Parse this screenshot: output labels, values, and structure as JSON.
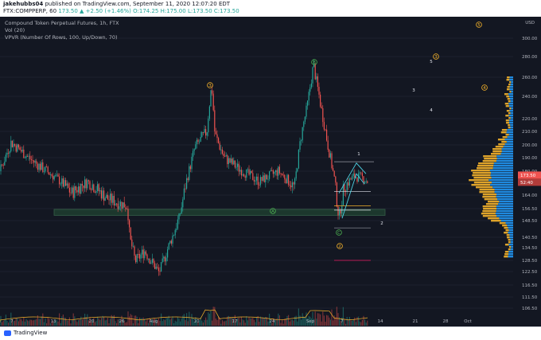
{
  "header": {
    "user": "jakehubbs04",
    "published": "published on TradingView.com, September 11, 2020 12:07:20 EDT",
    "symbol": "FTX:COMPPERP, 60",
    "price": "173.50",
    "change": "▲ +2.50 (+1.46%)",
    "ohlc": "O:174.25 H:175.00 L:173.50 C:173.50"
  },
  "legend": {
    "title": "Compound Token Perpetual Futures, 1h, FTX",
    "vol": "Vol (20)",
    "vpvr": "VPVR (Number Of Rows, 100, Up/Down, 70)"
  },
  "axis": {
    "currency": "USD",
    "price_labels": [
      "300.00",
      "280.00",
      "260.00",
      "240.00",
      "220.00",
      "210.00",
      "200.00",
      "190.00",
      "180.00",
      "170.00",
      "164.00",
      "156.50",
      "148.50",
      "140.50",
      "134.50",
      "128.50",
      "122.50",
      "116.50",
      "111.50",
      "106.50"
    ],
    "current_price": "173.50",
    "countdown": "52:40",
    "time_labels": [
      "7",
      "13",
      "20",
      "26",
      "Aug",
      "10",
      "17",
      "24",
      "Sep",
      "7",
      "14",
      "21",
      "28",
      "Oct"
    ]
  },
  "waves": {
    "yellow": [
      "1",
      "2",
      "3",
      "4",
      "5"
    ],
    "green": [
      "A",
      "B",
      "C"
    ],
    "white": [
      "1",
      "2",
      "3",
      "4",
      "5"
    ]
  },
  "chart_data": {
    "type": "candlestick",
    "symbol": "FTX:COMPPERP",
    "interval": "1h",
    "price_range": [
      100,
      320
    ],
    "price_path": [
      [
        0,
        180
      ],
      [
        14,
        202
      ],
      [
        40,
        188
      ],
      [
        70,
        175
      ],
      [
        90,
        165
      ],
      [
        110,
        172
      ],
      [
        135,
        162
      ],
      [
        160,
        158
      ],
      [
        163,
        140
      ],
      [
        170,
        128
      ],
      [
        182,
        133
      ],
      [
        200,
        122
      ],
      [
        225,
        150
      ],
      [
        245,
        198
      ],
      [
        260,
        210
      ],
      [
        266,
        252
      ],
      [
        270,
        208
      ],
      [
        282,
        190
      ],
      [
        300,
        182
      ],
      [
        326,
        172
      ],
      [
        350,
        180
      ],
      [
        370,
        168
      ],
      [
        378,
        205
      ],
      [
        386,
        230
      ],
      [
        394,
        272
      ],
      [
        404,
        228
      ],
      [
        412,
        200
      ],
      [
        420,
        175
      ],
      [
        426,
        150
      ],
      [
        432,
        168
      ],
      [
        445,
        176
      ],
      [
        455,
        175
      ],
      [
        462,
        172
      ]
    ],
    "support_zone": [
      152,
      156
    ],
    "colors": {
      "up": "#26a69a",
      "down": "#ef5350",
      "background": "#131722",
      "zone": "#1e3d2f",
      "vp_up": "#2196f3",
      "vp_down": "#f5b32b"
    }
  },
  "footer": {
    "brand": "TradingView"
  }
}
